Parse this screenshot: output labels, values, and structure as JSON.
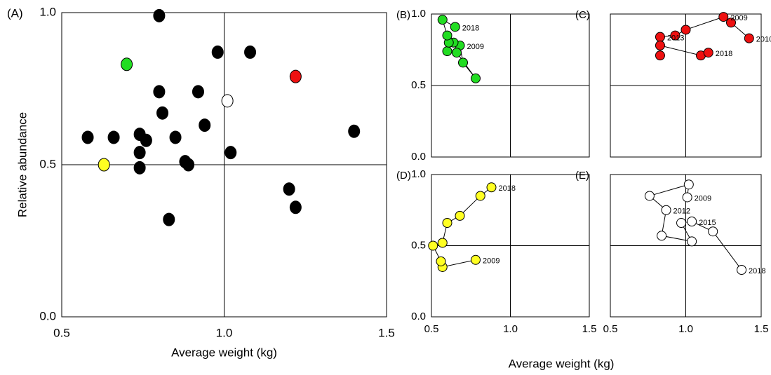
{
  "chart_data": [
    {
      "type": "scatter",
      "title": "(A)",
      "xlabel": "Average weight (kg)",
      "ylabel": "Relative abundance",
      "xlim": [
        0.5,
        1.5
      ],
      "ylim": [
        0,
        1
      ],
      "xticks": [
        0.5,
        {
          "value": 1,
          "label": "1.0"
        },
        1.5
      ],
      "yticks": [
        {
          "value": 0,
          "label": "0.0"
        },
        0.5,
        {
          "value": 1,
          "label": "1.0"
        }
      ],
      "ref_x": 1,
      "ref_y": 0.5,
      "series": [
        {
          "color": "#000000",
          "x": [
            0.8,
            0.98,
            1.08,
            0.8,
            0.92,
            0.81,
            0.94,
            1.4,
            0.58,
            0.66,
            0.74,
            0.76,
            0.85,
            0.74,
            1.02,
            0.88,
            0.89,
            0.74,
            1.2,
            1.22,
            0.83
          ],
          "values": [
            0.99,
            0.87,
            0.87,
            0.74,
            0.74,
            0.67,
            0.63,
            0.61,
            0.59,
            0.59,
            0.6,
            0.58,
            0.59,
            0.54,
            0.54,
            0.51,
            0.5,
            0.49,
            0.42,
            0.36,
            0.32
          ]
        },
        {
          "color": "#22dd22",
          "x": [
            0.7
          ],
          "values": [
            0.83
          ]
        },
        {
          "color": "#ee1111",
          "x": [
            1.22
          ],
          "values": [
            0.79
          ]
        },
        {
          "color": "#ffffff",
          "x": [
            1.01
          ],
          "values": [
            0.71
          ]
        },
        {
          "color": "#ffff22",
          "x": [
            0.63
          ],
          "values": [
            0.5
          ]
        }
      ]
    },
    {
      "type": "line",
      "title": "(B)",
      "xlim": [
        0.5,
        1.5
      ],
      "ylim": [
        0,
        1
      ],
      "yticks": [
        {
          "value": 0,
          "label": "0.0"
        },
        0.5,
        {
          "value": 1,
          "label": "1.0"
        }
      ],
      "ref_x": 1,
      "ref_y": 0.5,
      "series": [
        {
          "color": "#22dd22",
          "x": [
            0.68,
            0.7,
            0.78,
            0.66,
            0.6,
            0.64,
            0.61,
            0.6,
            0.57,
            0.65
          ],
          "values": [
            0.78,
            0.66,
            0.55,
            0.73,
            0.74,
            0.8,
            0.8,
            0.85,
            0.96,
            0.91
          ],
          "point_labels": [
            "2009",
            null,
            null,
            null,
            null,
            null,
            null,
            null,
            null,
            "2018"
          ]
        }
      ]
    },
    {
      "type": "line",
      "title": "(C)",
      "xlim": [
        0.5,
        1.5
      ],
      "ylim": [
        0,
        1
      ],
      "ref_x": 1,
      "ref_y": 0.5,
      "series": [
        {
          "color": "#ee1111",
          "x": [
            1.42,
            1.3,
            1.25,
            1.0,
            0.93,
            0.83,
            0.83,
            0.83,
            1.1,
            1.15
          ],
          "values": [
            0.83,
            0.94,
            0.98,
            0.89,
            0.85,
            0.84,
            0.71,
            0.78,
            0.71,
            0.73
          ],
          "point_labels": [
            "2010",
            null,
            "2009",
            null,
            null,
            "2013",
            null,
            null,
            null,
            "2018"
          ]
        }
      ]
    },
    {
      "type": "line",
      "title": "(D)",
      "xlim": [
        0.5,
        1.5
      ],
      "ylim": [
        0,
        1
      ],
      "xticks": [
        0.5,
        {
          "value": 1,
          "label": "1.0"
        },
        1.5
      ],
      "yticks": [
        {
          "value": 0,
          "label": "0.0"
        },
        0.5,
        {
          "value": 1,
          "label": "1.0"
        }
      ],
      "ref_x": 1,
      "ref_y": 0.5,
      "series": [
        {
          "color": "#ffff22",
          "x": [
            0.78,
            0.57,
            0.56,
            0.51,
            0.57,
            0.6,
            0.68,
            0.81,
            0.88
          ],
          "values": [
            0.4,
            0.35,
            0.39,
            0.5,
            0.52,
            0.66,
            0.71,
            0.85,
            0.91
          ],
          "point_labels": [
            "2009",
            null,
            null,
            null,
            null,
            null,
            null,
            null,
            "2018"
          ]
        }
      ]
    },
    {
      "type": "line",
      "title": "(E)",
      "xlim": [
        0.5,
        1.5
      ],
      "ylim": [
        0,
        1
      ],
      "xticks": [
        0.5,
        {
          "value": 1,
          "label": "1.0"
        },
        1.5
      ],
      "ref_x": 1,
      "ref_y": 0.5,
      "series": [
        {
          "color": "#ffffff",
          "x": [
            1.01,
            1.02,
            0.76,
            0.87,
            0.84,
            1.04,
            0.97,
            1.04,
            1.18,
            1.37
          ],
          "values": [
            0.84,
            0.93,
            0.85,
            0.75,
            0.57,
            0.53,
            0.66,
            0.67,
            0.6,
            0.33
          ],
          "point_labels": [
            "2009",
            null,
            null,
            "2012",
            null,
            null,
            null,
            "2015",
            null,
            "2018"
          ]
        }
      ]
    }
  ],
  "shared_xlabel": "Average weight (kg)"
}
